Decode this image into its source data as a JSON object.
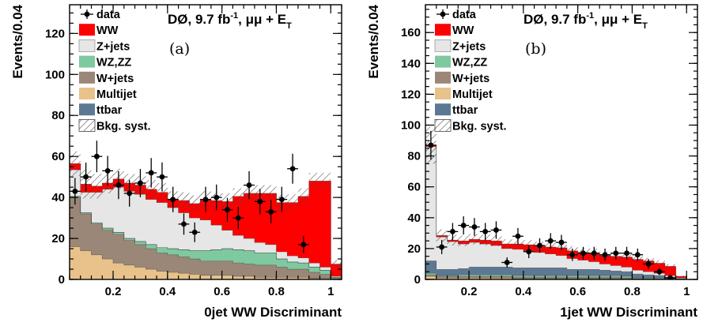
{
  "chart_data": [
    {
      "type": "bar",
      "stacked": true,
      "panel_label": "(a)",
      "experiment_label": "DØ, 9.7 fb",
      "experiment_label_sup": "-1",
      "experiment_label_tail": ", μμ + E",
      "experiment_label_sub": "T",
      "xlabel": "0jet WW Discriminant",
      "ylabel": "Events/0.04",
      "xlim": [
        0.04,
        1.04
      ],
      "ylim": [
        0,
        134
      ],
      "x_ticks": [
        "0.2",
        "0.4",
        "0.6",
        "0.8",
        "1"
      ],
      "x_tick_values": [
        0.2,
        0.4,
        0.6,
        0.8,
        1.0
      ],
      "y_ticks": [
        "0",
        "20",
        "40",
        "60",
        "80",
        "100",
        "120"
      ],
      "y_tick_values": [
        0,
        20,
        40,
        60,
        80,
        100,
        120
      ],
      "bin_edges": [
        0.04,
        0.08,
        0.12,
        0.16,
        0.2,
        0.24,
        0.28,
        0.32,
        0.36,
        0.4,
        0.44,
        0.48,
        0.52,
        0.56,
        0.6,
        0.64,
        0.68,
        0.72,
        0.76,
        0.8,
        0.84,
        0.88,
        0.92,
        0.96,
        1.0,
        1.04
      ],
      "series": [
        {
          "name": "Multijet",
          "color": "#e8c28a",
          "values": [
            16,
            14,
            12,
            10,
            8,
            7,
            6,
            5,
            4,
            3.5,
            3,
            2.5,
            2,
            2,
            2,
            1.5,
            1.5,
            1,
            1,
            1,
            1,
            1,
            0.5,
            0.5,
            0
          ]
        },
        {
          "name": "W+jets",
          "color": "#9b8777",
          "values": [
            24,
            18,
            15,
            14,
            14,
            12,
            11,
            10,
            9,
            8.5,
            8,
            7.5,
            7,
            7,
            7,
            6.5,
            6,
            6,
            6,
            5,
            4,
            4,
            3,
            2,
            0.5
          ]
        },
        {
          "name": "WZ,ZZ",
          "color": "#7fc9a0",
          "values": [
            0.5,
            0.5,
            0.5,
            1,
            1,
            1,
            1.5,
            2,
            2.5,
            3,
            3.5,
            4,
            5,
            5.5,
            6,
            6.5,
            6.5,
            6,
            6,
            4,
            3.5,
            3,
            2.5,
            2,
            0.5
          ]
        },
        {
          "name": "ttbar",
          "color": "#5d7893",
          "values": [
            0,
            0,
            0,
            0,
            0,
            0,
            0,
            0,
            0,
            0,
            0,
            0,
            0,
            0,
            0,
            0,
            0,
            0,
            0,
            0,
            0,
            0,
            0,
            0,
            0
          ]
        },
        {
          "name": "Z+jets",
          "color": "#e6e6e6",
          "values": [
            13,
            10,
            15,
            19,
            22,
            23,
            23,
            22,
            22,
            20,
            18,
            16,
            15,
            12,
            9,
            7,
            6,
            5,
            4,
            3.5,
            3,
            2.5,
            2,
            1.5,
            0.5
          ]
        },
        {
          "name": "WW",
          "color": "#ff0000",
          "values": [
            3,
            4,
            3,
            3,
            4,
            4,
            4.5,
            5,
            5,
            4,
            6,
            7,
            10,
            12,
            14,
            19,
            22,
            24,
            25,
            24,
            26,
            30,
            40,
            42,
            6
          ]
        }
      ],
      "syst": [
        6,
        7,
        6,
        5,
        5,
        4.5,
        4.5,
        4.5,
        4.5,
        4,
        4,
        4,
        4,
        4,
        4,
        4,
        4,
        4,
        4,
        4,
        4,
        4,
        4,
        4,
        2
      ],
      "data": {
        "x": [
          0.06,
          0.1,
          0.14,
          0.18,
          0.22,
          0.26,
          0.3,
          0.34,
          0.38,
          0.42,
          0.46,
          0.5,
          0.54,
          0.58,
          0.62,
          0.66,
          0.7,
          0.74,
          0.78,
          0.82,
          0.86,
          0.9,
          0.94,
          0.98
        ],
        "y": [
          43,
          50,
          60,
          53,
          46,
          42,
          47,
          52,
          50,
          39,
          27,
          23,
          39,
          40,
          34,
          30,
          46,
          38,
          33,
          39,
          54,
          17,
          0,
          0
        ],
        "err": [
          6.5,
          7,
          7.7,
          7.3,
          6.8,
          6.5,
          6.9,
          7.2,
          7.1,
          6.2,
          5.2,
          4.8,
          6.2,
          6.3,
          5.8,
          5.5,
          6.8,
          6.2,
          5.7,
          6.2,
          7.3,
          4.1,
          0,
          0
        ]
      },
      "legend": {
        "placement": "top-left",
        "entries": [
          "data",
          "WW",
          "Z+jets",
          "WZ,ZZ",
          "W+jets",
          "Multijet",
          "ttbar",
          "Bkg. syst."
        ]
      }
    },
    {
      "type": "bar",
      "stacked": true,
      "panel_label": "(b)",
      "experiment_label": "DØ, 9.7 fb",
      "experiment_label_sup": "-1",
      "experiment_label_tail": ", μμ + E",
      "experiment_label_sub": "T",
      "xlabel": "1jet WW Discriminant",
      "ylabel": "Events/0.04",
      "xlim": [
        0.04,
        1.04
      ],
      "ylim": [
        0,
        178
      ],
      "x_ticks": [
        "0.2",
        "0.4",
        "0.6",
        "0.8",
        "1"
      ],
      "x_tick_values": [
        0.2,
        0.4,
        0.6,
        0.8,
        1.0
      ],
      "y_ticks": [
        "0",
        "20",
        "40",
        "60",
        "80",
        "100",
        "120",
        "140",
        "160"
      ],
      "y_tick_values": [
        0,
        20,
        40,
        60,
        80,
        100,
        120,
        140,
        160
      ],
      "bin_edges": [
        0.04,
        0.08,
        0.12,
        0.16,
        0.2,
        0.24,
        0.28,
        0.32,
        0.36,
        0.4,
        0.44,
        0.48,
        0.52,
        0.56,
        0.6,
        0.64,
        0.68,
        0.72,
        0.76,
        0.8,
        0.84,
        0.88,
        0.92,
        0.96,
        1.0,
        1.04
      ],
      "series": [
        {
          "name": "Multijet",
          "color": "#e8c28a",
          "values": [
            2,
            1,
            1,
            1,
            1,
            1,
            1,
            1,
            0.5,
            0.5,
            0.5,
            0.5,
            0.5,
            0.5,
            0.5,
            0.5,
            0.5,
            0.5,
            0.5,
            0,
            0,
            0,
            0,
            0,
            0
          ]
        },
        {
          "name": "W+jets",
          "color": "#9b8777",
          "values": [
            1,
            1,
            1,
            1,
            1,
            1,
            1,
            1,
            1,
            1,
            1,
            1,
            1,
            1,
            1,
            1,
            1,
            1,
            0.5,
            0.5,
            0.5,
            0.5,
            0,
            0,
            0
          ]
        },
        {
          "name": "WZ,ZZ",
          "color": "#7fc9a0",
          "values": [
            1,
            0.5,
            0.5,
            1,
            1,
            1,
            1,
            1,
            1,
            1,
            1,
            1,
            1,
            1,
            1,
            1,
            1,
            1,
            1,
            0.5,
            0.5,
            0.5,
            0.5,
            0,
            0
          ]
        },
        {
          "name": "ttbar",
          "color": "#5d7893",
          "values": [
            8,
            4,
            4,
            4,
            5,
            5,
            5,
            5,
            5,
            5,
            5,
            5,
            5,
            4,
            4,
            4,
            3.5,
            3,
            3,
            2.5,
            2,
            1.5,
            1,
            0.5,
            0
          ]
        },
        {
          "name": "Z+jets",
          "color": "#e6e6e6",
          "values": [
            74,
            21,
            18,
            16,
            16,
            15,
            14,
            12,
            12,
            11,
            10,
            9,
            8,
            7,
            6,
            5,
            4,
            3.5,
            3,
            2.5,
            2,
            1.5,
            1,
            0.5,
            0
          ]
        },
        {
          "name": "WW",
          "color": "#ff0000",
          "values": [
            1,
            1,
            1,
            2,
            2,
            2.5,
            3,
            3,
            3.5,
            4,
            4,
            4.5,
            5,
            5,
            5,
            5.5,
            5.5,
            6,
            6.5,
            7,
            7,
            6.5,
            6,
            1,
            0
          ]
        }
      ],
      "syst": [
        12,
        4,
        3.5,
        3.5,
        3.5,
        3.5,
        3.5,
        3,
        3,
        3,
        3,
        3,
        3,
        3,
        3,
        3,
        2.5,
        2.5,
        2.5,
        2,
        2,
        2,
        1.5,
        0.5,
        0
      ],
      "data": {
        "x": [
          0.06,
          0.1,
          0.14,
          0.18,
          0.22,
          0.26,
          0.3,
          0.34,
          0.38,
          0.42,
          0.46,
          0.5,
          0.54,
          0.58,
          0.62,
          0.66,
          0.7,
          0.74,
          0.78,
          0.82,
          0.86,
          0.9,
          0.94,
          0.98
        ],
        "y": [
          87,
          21,
          31,
          35,
          34,
          31,
          32,
          11,
          28,
          18,
          22,
          25,
          24,
          16,
          17,
          17,
          16,
          17,
          17,
          16,
          10,
          5,
          1,
          0
        ],
        "err": [
          9.3,
          4.6,
          5.6,
          5.9,
          5.8,
          5.6,
          5.7,
          3.3,
          5.3,
          4.2,
          4.7,
          5,
          4.9,
          4,
          4.1,
          4.1,
          4,
          4.1,
          4.1,
          4,
          3.2,
          2.2,
          1,
          0
        ]
      },
      "legend": {
        "placement": "top-left",
        "entries": [
          "data",
          "WW",
          "Z+jets",
          "WZ,ZZ",
          "W+jets",
          "Multijet",
          "ttbar",
          "Bkg. syst."
        ]
      }
    }
  ]
}
